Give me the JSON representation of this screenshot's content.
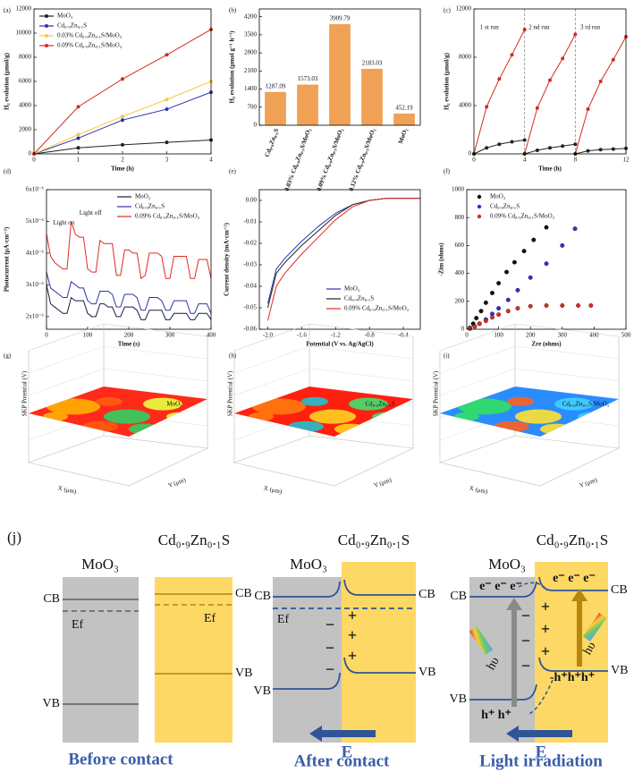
{
  "chart_data": [
    {
      "type": "line",
      "panel": "(a)",
      "x_label": "Time (h)",
      "y_label": "H₂ evolution (μmol/g)",
      "x": [
        0,
        1,
        2,
        3,
        4
      ],
      "xlim": [
        0,
        4
      ],
      "xticks": [
        0,
        1,
        2,
        3,
        4
      ],
      "ylim": [
        0,
        12000
      ],
      "yticks": [
        0,
        2000,
        4000,
        6000,
        8000,
        10000,
        12000
      ],
      "markers": true,
      "legend": "upper left",
      "series": [
        {
          "name": "MoO₃",
          "color": "#222222",
          "values": [
            0,
            500,
            750,
            950,
            1150
          ]
        },
        {
          "name": "Cd₀.₉Zn₀.₁S",
          "color": "#2b35a8",
          "values": [
            0,
            1300,
            2800,
            3700,
            5100
          ]
        },
        {
          "name": "0.03% Cd₀.₉Zn₀.₁S/MoO₃",
          "color": "#f5c842",
          "values": [
            0,
            1600,
            3100,
            4500,
            6000
          ]
        },
        {
          "name": "0.09% Cd₀.₉Zn₀.₁S/MoO₃",
          "color": "#d42a1e",
          "values": [
            0,
            3900,
            6200,
            8200,
            10300
          ]
        }
      ]
    },
    {
      "type": "bar",
      "panel": "(b)",
      "y_label": "H₂ evolution (μmol g⁻¹ h⁻¹)",
      "color": "#f0a155",
      "categories": [
        "Cd₀.₉Zn₀.₁S",
        "0.03% Cd₀.₉Zn₀.₁S/MoO₃",
        "0.09% Cd₀.₉Zn₀.₁S/MoO₃",
        "0.12% Cd₀.₉Zn₀.₁S/MoO₃",
        "MoO₃"
      ],
      "values": [
        1287.09,
        1573.03,
        3909.79,
        2183.03,
        452.19
      ],
      "ylim": [
        0,
        4500
      ],
      "yticks": [
        0,
        700,
        1400,
        2100,
        2800,
        3500,
        4200
      ]
    },
    {
      "type": "line",
      "panel": "(c)",
      "x_label": "Time (h)",
      "y_label": "H₂ evolution (μmol/g)",
      "xlim": [
        0,
        12
      ],
      "xticks": [
        0,
        4,
        8,
        12
      ],
      "ylim": [
        0,
        12000
      ],
      "yticks": [
        0,
        4000,
        8000,
        12000
      ],
      "markers": true,
      "vlines": [
        4,
        8
      ],
      "annotations": [
        "1 st run",
        "2 nd run",
        "3 rd run"
      ],
      "series": [
        {
          "color": "#d42a1e",
          "x": [
            0,
            1,
            2,
            3,
            4
          ],
          "values": [
            0,
            3900,
            6200,
            8200,
            10300
          ]
        },
        {
          "color": "#d42a1e",
          "x": [
            4,
            5,
            6,
            7,
            8
          ],
          "values": [
            0,
            3800,
            6100,
            7900,
            9900
          ]
        },
        {
          "color": "#d42a1e",
          "x": [
            8,
            9,
            10,
            11,
            12
          ],
          "values": [
            0,
            3700,
            6000,
            7800,
            9700
          ]
        },
        {
          "color": "#222222",
          "x": [
            0,
            1,
            2,
            3,
            4
          ],
          "values": [
            0,
            500,
            800,
            1000,
            1150
          ]
        },
        {
          "color": "#222222",
          "x": [
            4,
            5,
            6,
            7,
            8
          ],
          "values": [
            0,
            300,
            500,
            650,
            800
          ]
        },
        {
          "color": "#222222",
          "x": [
            8,
            9,
            10,
            11,
            12
          ],
          "values": [
            0,
            250,
            350,
            400,
            450
          ]
        }
      ]
    },
    {
      "type": "line",
      "panel": "(d)",
      "x_label": "Time (s)",
      "y_label": "Photocurrent (μA·cm⁻²)",
      "x": [
        0,
        10,
        20,
        30,
        40,
        50,
        60,
        70,
        80,
        90,
        100,
        110,
        120,
        130,
        140,
        150,
        160,
        170,
        180,
        190,
        200,
        210,
        220,
        230,
        240,
        250,
        260,
        270,
        280,
        290,
        300,
        310,
        320,
        330,
        340,
        350,
        360,
        370,
        380,
        390,
        400
      ],
      "xlim": [
        0,
        400
      ],
      "xticks": [
        0,
        100,
        200,
        300,
        400
      ],
      "ylim": [
        1.6e-06,
        6e-06
      ],
      "yticks": [
        {
          "value": 2e-06,
          "label": "2x10⁻⁶"
        },
        {
          "value": 3e-06,
          "label": "3x10⁻⁶"
        },
        {
          "value": 4e-06,
          "label": "4x10⁻⁶"
        },
        {
          "value": 5e-06,
          "label": "5x10⁻⁶"
        },
        {
          "value": 6e-06,
          "label": "6x10⁻⁶"
        }
      ],
      "markers": false,
      "legend": "upper right",
      "annotations": [
        "Light on",
        "Light off"
      ],
      "series": [
        {
          "name": "MoO₃",
          "color": "#1a1a40",
          "values": [
            3e-06,
            2.4e-06,
            2.3e-06,
            2.2e-06,
            2.1e-06,
            2.1e-06,
            2.6e-06,
            2.5e-06,
            2.5e-06,
            2.5e-06,
            2.1e-06,
            2e-06,
            2e-06,
            2.4e-06,
            2.4e-06,
            2.3e-06,
            2.3e-06,
            2e-06,
            2e-06,
            2.3e-06,
            2.3e-06,
            2.3e-06,
            2.2e-06,
            1.9e-06,
            1.9e-06,
            2.2e-06,
            2.2e-06,
            2.2e-06,
            2.2e-06,
            1.9e-06,
            1.9e-06,
            2.1e-06,
            2.1e-06,
            2.1e-06,
            2.1e-06,
            1.9e-06,
            1.9e-06,
            2.1e-06,
            2.1e-06,
            2.1e-06,
            1.9e-06
          ]
        },
        {
          "name": "Cd₀.₉Zn₀.₁S",
          "color": "#2b35a8",
          "values": [
            3.4e-06,
            2.9e-06,
            2.8e-06,
            2.7e-06,
            2.6e-06,
            2.6e-06,
            3.1e-06,
            3e-06,
            2.9e-06,
            2.9e-06,
            2.5e-06,
            2.4e-06,
            2.4e-06,
            2.8e-06,
            2.8e-06,
            2.8e-06,
            2.7e-06,
            2.3e-06,
            2.3e-06,
            2.7e-06,
            2.7e-06,
            2.7e-06,
            2.6e-06,
            2.2e-06,
            2.2e-06,
            2.6e-06,
            2.6e-06,
            2.6e-06,
            2.5e-06,
            2.2e-06,
            2.2e-06,
            2.5e-06,
            2.5e-06,
            2.5e-06,
            2.5e-06,
            2.1e-06,
            2.1e-06,
            2.4e-06,
            2.4e-06,
            2.4e-06,
            2.1e-06
          ]
        },
        {
          "name": "0.09% Cd₀.₉Zn₀.₁S/MoO₃",
          "color": "#e02a1e",
          "values": [
            4.6e-06,
            3.9e-06,
            3.7e-06,
            3.6e-06,
            3.5e-06,
            3.5e-06,
            5e-06,
            4.6e-06,
            4.5e-06,
            4.5e-06,
            3.5e-06,
            3.4e-06,
            3.4e-06,
            4.4e-06,
            4.3e-06,
            4.3e-06,
            4.3e-06,
            3.3e-06,
            3.3e-06,
            4.1e-06,
            4.1e-06,
            4e-06,
            4e-06,
            3.2e-06,
            3.3e-06,
            4e-06,
            4e-06,
            4e-06,
            3.9e-06,
            3.2e-06,
            3.2e-06,
            3.9e-06,
            3.9e-06,
            3.9e-06,
            3.9e-06,
            3.2e-06,
            3.2e-06,
            3.8e-06,
            3.8e-06,
            3.8e-06,
            3.2e-06
          ]
        }
      ]
    },
    {
      "type": "line",
      "panel": "(e)",
      "x_label": "Potential (V vs. Ag/AgCl)",
      "y_label": "Current density (mA·cm⁻²)",
      "x": [
        -2.0,
        -1.9,
        -1.8,
        -1.6,
        -1.4,
        -1.2,
        -1.0,
        -0.8,
        -0.6,
        -0.4,
        -0.2
      ],
      "xlim": [
        -2.1,
        -0.2
      ],
      "xticks": [
        {
          "value": -2,
          "label": "-2.0"
        },
        -1.6,
        -1.2,
        -0.8,
        -0.4
      ],
      "ylim": [
        -0.06,
        0.005
      ],
      "yticks": [
        -0.06,
        -0.05,
        -0.04,
        -0.03,
        -0.02,
        -0.01,
        {
          "value": 0,
          "label": "0.00"
        }
      ],
      "markers": false,
      "legend": "lower right",
      "series": [
        {
          "name": "MoO₃",
          "color": "#2b35a8",
          "values": [
            -0.048,
            -0.032,
            -0.027,
            -0.019,
            -0.012,
            -0.006,
            -0.002,
            0,
            0.001,
            0.001,
            0.001
          ]
        },
        {
          "name": "Cd₀.₉Zn₀.₁S",
          "color": "#222222",
          "values": [
            -0.05,
            -0.034,
            -0.029,
            -0.021,
            -0.014,
            -0.007,
            -0.002,
            0,
            0.001,
            0.001,
            0.001
          ]
        },
        {
          "name": "0.09% Cd₀.₉Zn₀.₁S/MoO₃",
          "color": "#e02a1e",
          "values": [
            -0.056,
            -0.04,
            -0.034,
            -0.025,
            -0.017,
            -0.009,
            -0.003,
            0,
            0.001,
            0.001,
            0.001
          ]
        }
      ]
    },
    {
      "type": "scatter",
      "panel": "(f)",
      "x_label": "Zre (ohms)",
      "y_label": "-Zim (ohms)",
      "xlim": [
        0,
        500
      ],
      "xticks": [
        0,
        100,
        200,
        300,
        400,
        500
      ],
      "ylim": [
        0,
        1000
      ],
      "yticks": [
        0,
        200,
        400,
        600,
        800,
        1000
      ],
      "legend": "upper left",
      "series": [
        {
          "name": "MoO₃",
          "color": "#111111",
          "x": [
            10,
            20,
            30,
            45,
            60,
            80,
            100,
            125,
            150,
            180,
            210,
            250
          ],
          "values": [
            10,
            40,
            80,
            130,
            190,
            260,
            330,
            410,
            480,
            560,
            640,
            730
          ]
        },
        {
          "name": "Cd₀.₉Zn₀.₁S",
          "color": "#2b35c8",
          "x": [
            10,
            25,
            40,
            60,
            80,
            100,
            130,
            160,
            200,
            250,
            300,
            340
          ],
          "values": [
            5,
            20,
            40,
            70,
            110,
            150,
            210,
            280,
            370,
            470,
            600,
            720
          ]
        },
        {
          "name": "0.09% Cd₀.₉Zn₀.₁S/MoO₃",
          "color": "#e02a1e",
          "x": [
            10,
            25,
            40,
            60,
            80,
            100,
            130,
            160,
            200,
            250,
            300,
            350,
            390
          ],
          "values": [
            5,
            20,
            40,
            60,
            85,
            105,
            130,
            150,
            165,
            170,
            170,
            170,
            170
          ]
        }
      ]
    },
    {
      "type": "surface",
      "panel": "(g)",
      "label": "MoO₃",
      "label_color": "#333366",
      "z_label": "SKP Potential (V)",
      "x_label": "X (μm)",
      "y_label": "Y (μm)"
    },
    {
      "type": "surface",
      "panel": "(h)",
      "label": "Cd₀.₉Zn₀.₁S",
      "label_color": "#3b3ba0",
      "z_label": "SKP Potential (V)",
      "x_label": "X (μm)",
      "y_label": "Y (μm)"
    },
    {
      "type": "surface",
      "panel": "(i)",
      "label": "Cd₀.₉Zn₀.₁S/MoO₃",
      "label_color": "#d42a1e",
      "z_label": "SKP Potential (V)",
      "x_label": "X (μm)",
      "y_label": "Y (μm)"
    }
  ],
  "diagram": {
    "label": "(j)",
    "panels": [
      {
        "left": "MoO₃",
        "right": "Cd₀.₉Zn₀.₁S",
        "left_cb": "CB",
        "left_ef": "Ef",
        "left_vb": "VB",
        "right_cb": "CB",
        "right_ef": "Ef",
        "right_vb": "VB",
        "caption": "Before contact"
      },
      {
        "left": "MoO₃",
        "right": "Cd₀.₉Zn₀.₁S",
        "left_cb": "CB",
        "left_ef": "Ef",
        "left_vb": "VB",
        "right_cb": "CB",
        "right_vb": "VB",
        "minus": "−",
        "plus": "+",
        "field": "E",
        "caption": "After contact"
      },
      {
        "left": "MoO₃",
        "right": "Cd₀.₉Zn₀.₁S",
        "left_cb": "CB",
        "left_vb": "VB",
        "right_cb": "CB",
        "right_vb": "VB",
        "left_electrons": "e⁻ e⁻ e⁻",
        "right_electrons": "e⁻ e⁻ e⁻",
        "left_holes": "h⁺ h⁺",
        "right_holes": "-h⁺h⁺h⁺",
        "photon": "hυ",
        "plus": "+",
        "minus": "−",
        "field": "E",
        "caption": "Light irradiation"
      }
    ]
  }
}
